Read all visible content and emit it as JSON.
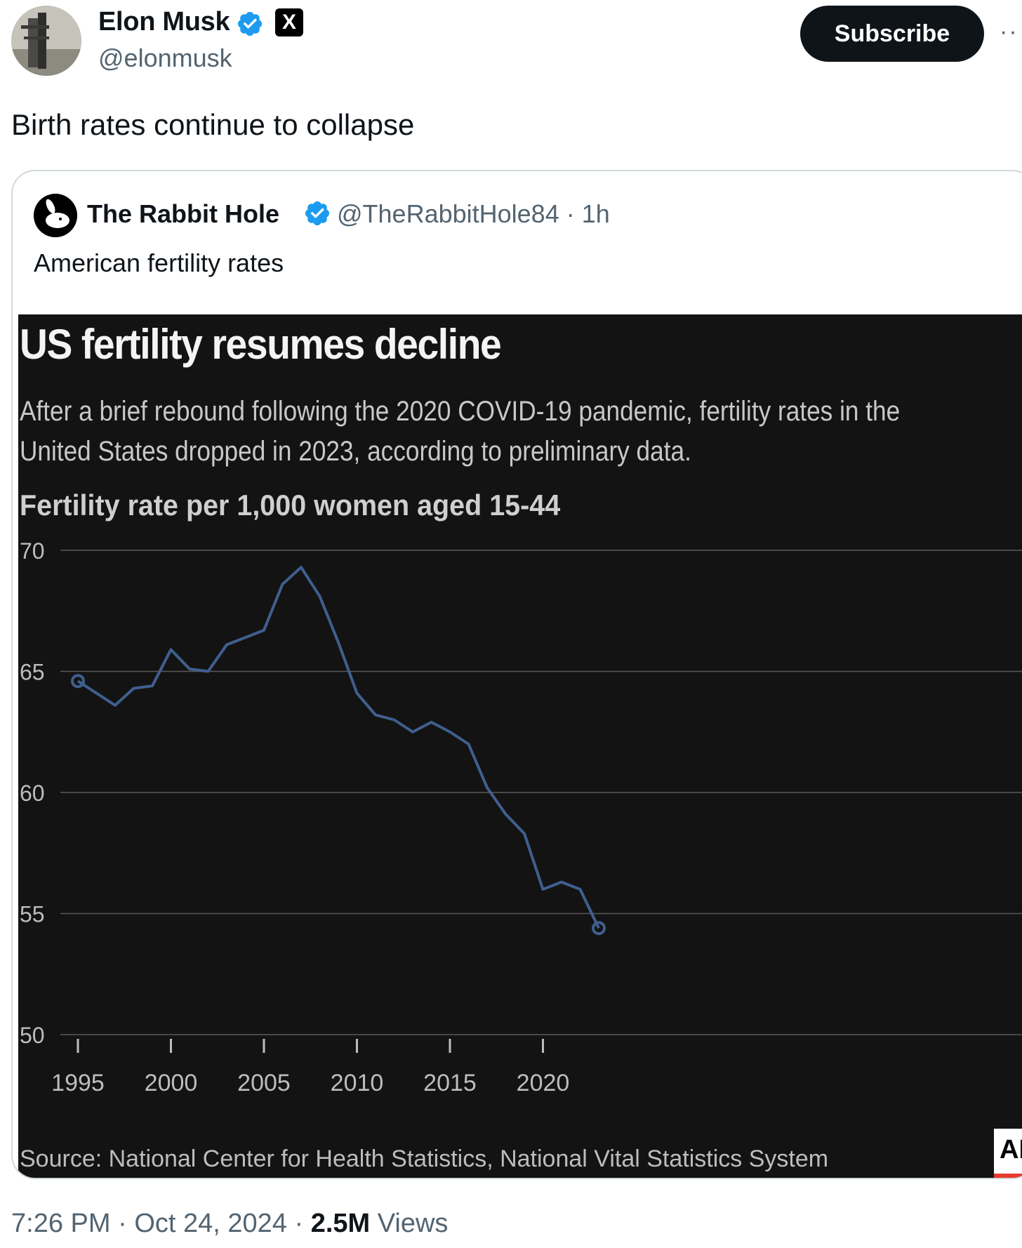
{
  "tweet": {
    "author_name": "Elon Musk",
    "author_handle": "@elonmusk",
    "x_badge": "X",
    "subscribe_label": "Subscribe",
    "more_label": "··",
    "text": "Birth rates continue to collapse",
    "time": "7:26 PM",
    "date": "Oct 24, 2024",
    "views_count": "2.5M",
    "views_label": "Views",
    "separator": "·"
  },
  "quote": {
    "author_name": "The Rabbit Hole",
    "author_handle": "@TheRabbitHole84",
    "age": "· 1h",
    "text": "American fertility rates"
  },
  "colors": {
    "verified": "#1d9bf0",
    "line": "#3f5f8e",
    "chart_bg": "#131313"
  },
  "chart_data": {
    "type": "line",
    "title": "US fertility resumes decline",
    "subtitle": "After a brief rebound following the 2020 COVID-19 pandemic, fertility rates in the United States dropped in 2023, according to preliminary data.",
    "ylabel": "Fertility rate per 1,000 women aged 15-44",
    "xlabel": "",
    "source": "Source: National Center for Health Statistics, National Vital Statistics System",
    "logo": "AP",
    "ylim": [
      50,
      70
    ],
    "yticks": [
      50,
      55,
      60,
      65,
      70
    ],
    "xlim": [
      1995,
      2023
    ],
    "xticks": [
      1995,
      2000,
      2005,
      2010,
      2015,
      2020
    ],
    "grid": true,
    "x": [
      1995,
      1996,
      1997,
      1998,
      1999,
      2000,
      2001,
      2002,
      2003,
      2004,
      2005,
      2006,
      2007,
      2008,
      2009,
      2010,
      2011,
      2012,
      2013,
      2014,
      2015,
      2016,
      2017,
      2018,
      2019,
      2020,
      2021,
      2022,
      2023
    ],
    "y": [
      64.6,
      64.1,
      63.6,
      64.3,
      64.4,
      65.9,
      65.1,
      65.0,
      66.1,
      66.4,
      66.7,
      68.6,
      69.3,
      68.1,
      66.2,
      64.1,
      63.2,
      63.0,
      62.5,
      62.9,
      62.5,
      62.0,
      60.2,
      59.1,
      58.3,
      56.0,
      56.3,
      56.0,
      54.4
    ]
  }
}
